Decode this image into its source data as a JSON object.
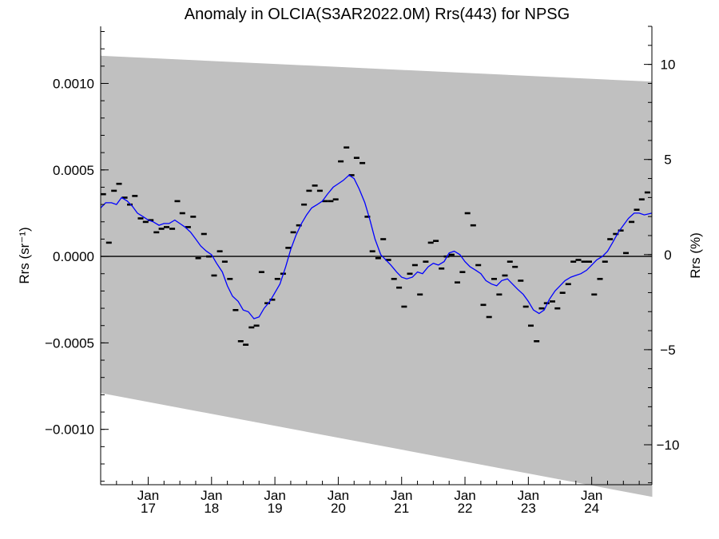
{
  "chart_data": {
    "type": "scatter",
    "title": "Anomaly in OLCIA(S3AR2022.0M) Rrs(443) for NPSG",
    "ylabel_left": "Rrs (sr⁻¹)",
    "ylabel_right": "Rrs (%)",
    "xlim": [
      2016.25,
      2024.95
    ],
    "ylim": [
      -0.00132,
      0.00133
    ],
    "ylim_right": [
      -12.1,
      12.0
    ],
    "x_ticks": [
      {
        "x": 2017.0,
        "month": "Jan",
        "year": "17"
      },
      {
        "x": 2018.0,
        "month": "Jan",
        "year": "18"
      },
      {
        "x": 2019.0,
        "month": "Jan",
        "year": "19"
      },
      {
        "x": 2020.0,
        "month": "Jan",
        "year": "20"
      },
      {
        "x": 2021.0,
        "month": "Jan",
        "year": "21"
      },
      {
        "x": 2022.0,
        "month": "Jan",
        "year": "22"
      },
      {
        "x": 2023.0,
        "month": "Jan",
        "year": "23"
      },
      {
        "x": 2024.0,
        "month": "Jan",
        "year": "24"
      }
    ],
    "y_ticks_left": [
      {
        "value": 0.001,
        "label": "0.0010"
      },
      {
        "value": 0.0005,
        "label": "0.0005"
      },
      {
        "value": 0.0,
        "label": "0.0000"
      },
      {
        "value": -0.0005,
        "label": "−0.0005"
      },
      {
        "value": -0.001,
        "label": "−0.0010"
      }
    ],
    "y_ticks_right": [
      {
        "value": 10,
        "label": "10"
      },
      {
        "value": 5,
        "label": "5"
      },
      {
        "value": 0,
        "label": "0"
      },
      {
        "value": -5,
        "label": "−5"
      },
      {
        "value": -10,
        "label": "−10"
      }
    ],
    "band": {
      "x": [
        2016.25,
        2024.95
      ],
      "upper": [
        0.00116,
        0.00101
      ],
      "lower": [
        -0.00079,
        -0.00139
      ],
      "color": "#c0c0c0"
    },
    "zero_line": 0,
    "monthly_anomaly": {
      "color": "#000000",
      "x": [
        2016.29,
        2016.38,
        2016.46,
        2016.54,
        2016.63,
        2016.71,
        2016.79,
        2016.88,
        2016.96,
        2017.04,
        2017.13,
        2017.21,
        2017.29,
        2017.38,
        2017.46,
        2017.54,
        2017.63,
        2017.71,
        2017.79,
        2017.88,
        2017.96,
        2018.04,
        2018.13,
        2018.21,
        2018.29,
        2018.38,
        2018.46,
        2018.54,
        2018.63,
        2018.71,
        2018.79,
        2018.88,
        2018.96,
        2019.04,
        2019.13,
        2019.21,
        2019.29,
        2019.38,
        2019.46,
        2019.54,
        2019.63,
        2019.71,
        2019.79,
        2019.88,
        2019.96,
        2020.04,
        2020.13,
        2020.21,
        2020.29,
        2020.38,
        2020.46,
        2020.54,
        2020.63,
        2020.71,
        2020.79,
        2020.88,
        2020.96,
        2021.04,
        2021.13,
        2021.21,
        2021.29,
        2021.38,
        2021.46,
        2021.54,
        2021.63,
        2021.71,
        2021.79,
        2021.88,
        2021.96,
        2022.04,
        2022.13,
        2022.21,
        2022.29,
        2022.38,
        2022.46,
        2022.54,
        2022.63,
        2022.71,
        2022.79,
        2022.88,
        2022.96,
        2023.04,
        2023.13,
        2023.21,
        2023.29,
        2023.38,
        2023.46,
        2023.54,
        2023.63,
        2023.71,
        2023.79,
        2023.88,
        2023.96,
        2024.04,
        2024.13,
        2024.21,
        2024.29,
        2024.38,
        2024.46,
        2024.54,
        2024.63,
        2024.71,
        2024.79,
        2024.88
      ],
      "y": [
        0.00036,
        8e-05,
        0.00038,
        0.00042,
        0.00034,
        0.0003,
        0.00035,
        0.00022,
        0.0002,
        0.00021,
        0.00014,
        0.00016,
        0.00017,
        0.00016,
        0.00032,
        0.00025,
        0.00017,
        0.00023,
        -1e-05,
        0.00013,
        0.0,
        -0.00011,
        3e-05,
        -3e-05,
        -0.00013,
        -0.00031,
        -0.00049,
        -0.00051,
        -0.00041,
        -0.0004,
        -9e-05,
        -0.00027,
        -0.00025,
        -0.00013,
        -0.0001,
        5e-05,
        0.00014,
        0.00018,
        0.0003,
        0.00038,
        0.00041,
        0.00038,
        0.00032,
        0.00032,
        0.00033,
        0.00055,
        0.00063,
        0.00047,
        0.00057,
        0.00054,
        0.00023,
        3e-05,
        -1e-05,
        0.0001,
        -2e-05,
        -0.00013,
        -0.00018,
        -0.00029,
        -0.0001,
        -5e-05,
        -0.00022,
        -3e-05,
        8e-05,
        9e-05,
        -7e-05,
        0.0,
        1e-05,
        -0.00015,
        -9e-05,
        0.00025,
        0.00018,
        -5e-05,
        -0.00028,
        -0.00035,
        -0.00013,
        -0.00022,
        -0.00011,
        -3e-05,
        -6e-05,
        -0.00014,
        -0.00029,
        -0.0004,
        -0.00049,
        -0.0003,
        -0.00027,
        -0.00026,
        -0.0003,
        -0.00021,
        -0.00016,
        -3e-05,
        -2e-05,
        -3e-05,
        -3e-05,
        -0.00022,
        -0.00013,
        -3e-05,
        0.0001,
        0.00013,
        0.00015,
        2e-05,
        0.0002,
        0.00027,
        0.00033,
        0.00037
      ]
    },
    "smoothed_anomaly": {
      "color": "#0000ff",
      "x": [
        2016.25,
        2016.33,
        2016.42,
        2016.5,
        2016.58,
        2016.67,
        2016.75,
        2016.83,
        2016.92,
        2017.0,
        2017.08,
        2017.17,
        2017.25,
        2017.33,
        2017.42,
        2017.5,
        2017.58,
        2017.67,
        2017.75,
        2017.83,
        2017.92,
        2018.0,
        2018.08,
        2018.17,
        2018.25,
        2018.33,
        2018.42,
        2018.5,
        2018.58,
        2018.67,
        2018.75,
        2018.83,
        2018.92,
        2019.0,
        2019.08,
        2019.17,
        2019.25,
        2019.33,
        2019.42,
        2019.5,
        2019.58,
        2019.67,
        2019.75,
        2019.83,
        2019.92,
        2020.0,
        2020.08,
        2020.17,
        2020.25,
        2020.33,
        2020.42,
        2020.5,
        2020.58,
        2020.67,
        2020.75,
        2020.83,
        2020.92,
        2021.0,
        2021.08,
        2021.17,
        2021.25,
        2021.33,
        2021.42,
        2021.5,
        2021.58,
        2021.67,
        2021.75,
        2021.83,
        2021.92,
        2022.0,
        2022.08,
        2022.17,
        2022.25,
        2022.33,
        2022.42,
        2022.5,
        2022.58,
        2022.67,
        2022.75,
        2022.83,
        2022.92,
        2023.0,
        2023.08,
        2023.17,
        2023.25,
        2023.33,
        2023.42,
        2023.5,
        2023.58,
        2023.67,
        2023.75,
        2023.83,
        2023.92,
        2024.0,
        2024.08,
        2024.17,
        2024.25,
        2024.33,
        2024.42,
        2024.5,
        2024.58,
        2024.67,
        2024.75,
        2024.83,
        2024.95
      ],
      "y": [
        0.00028,
        0.00031,
        0.00031,
        0.0003,
        0.00034,
        0.00032,
        0.00029,
        0.00025,
        0.00023,
        0.00021,
        0.0002,
        0.00018,
        0.00019,
        0.00019,
        0.00021,
        0.00019,
        0.00017,
        0.00014,
        0.0001,
        6e-05,
        3e-05,
        1e-05,
        -4e-05,
        -9e-05,
        -0.00017,
        -0.00023,
        -0.00026,
        -0.00031,
        -0.00032,
        -0.00036,
        -0.00035,
        -0.0003,
        -0.00026,
        -0.00021,
        -0.00016,
        -6e-05,
        4e-05,
        0.00012,
        0.00019,
        0.00024,
        0.00028,
        0.0003,
        0.00032,
        0.00036,
        0.0004,
        0.00042,
        0.00044,
        0.00047,
        0.00045,
        0.00039,
        0.00031,
        0.00021,
        0.0001,
        1e-05,
        -2e-05,
        -5e-05,
        -9e-05,
        -0.00012,
        -0.00013,
        -0.00012,
        -9e-05,
        -0.0001,
        -6e-05,
        -4e-05,
        -5e-05,
        -3e-05,
        2e-05,
        3e-05,
        1e-05,
        -3e-05,
        -6e-05,
        -8e-05,
        -0.0001,
        -0.00014,
        -0.00016,
        -0.00017,
        -0.00014,
        -0.00013,
        -0.00016,
        -0.00019,
        -0.00022,
        -0.00026,
        -0.00031,
        -0.00033,
        -0.00031,
        -0.00025,
        -0.0002,
        -0.00017,
        -0.00014,
        -0.00012,
        -0.00011,
        -0.0001,
        -8e-05,
        -5e-05,
        -2e-05,
        0.0,
        3e-05,
        8e-05,
        0.00014,
        0.00018,
        0.00022,
        0.00025,
        0.00025,
        0.00024,
        0.00025
      ]
    }
  }
}
